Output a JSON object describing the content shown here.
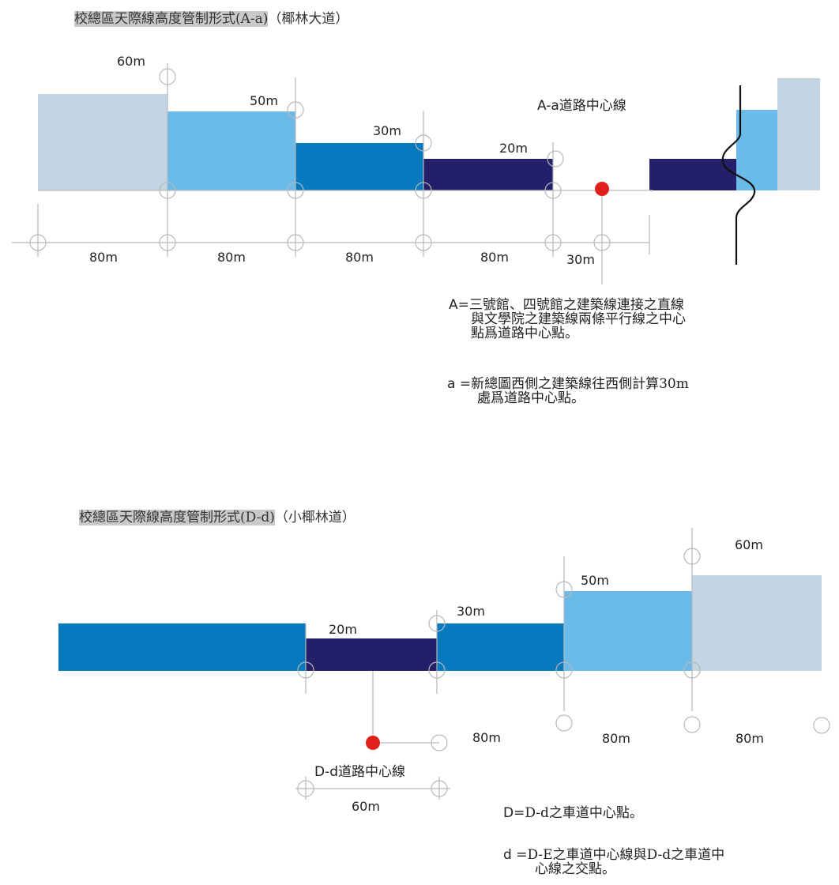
{
  "section_a": {
    "title": "校總區天際線高度管制形式(A-a)",
    "subtitle": "（椰林大道）",
    "heights": [
      "60m",
      "50m",
      "30m",
      "20m"
    ],
    "distances": [
      "80m",
      "80m",
      "80m",
      "80m",
      "30m"
    ],
    "center_line_label": "A-a道路中心線",
    "note_A": {
      "prefix": "A=",
      "lines": [
        "三號館、四號館之建築線連接之直線",
        "與文學院之建築線兩條平行線之中心",
        "點爲道路中心點。"
      ]
    },
    "note_a": {
      "prefix": "a =",
      "lines": [
        "新總圖西側之建築線往西側計算30m",
        "處爲道路中心點。"
      ]
    }
  },
  "section_d": {
    "title": "校總區天際線高度管制形式(D-d)",
    "subtitle": "（小椰林道）",
    "heights": [
      "20m",
      "30m",
      "50m",
      "60m"
    ],
    "distances": [
      "80m",
      "80m",
      "80m",
      "60m"
    ],
    "center_line_label": "D-d道路中心線",
    "note_D": {
      "prefix": "D=",
      "text": "D-d之車道中心點。"
    },
    "note_d": {
      "prefix": "d =",
      "lines": [
        "D-E之車道中心線與D-d之車道中",
        "心線之交點。"
      ]
    }
  },
  "colors": {
    "zone_60m": "#c3d5e3",
    "zone_50m": "#6bbbea",
    "zone_30m": "#0779bf",
    "zone_20m": "#231f68",
    "center_point": "#e0201b",
    "grid_line": "#b8b8b8"
  }
}
